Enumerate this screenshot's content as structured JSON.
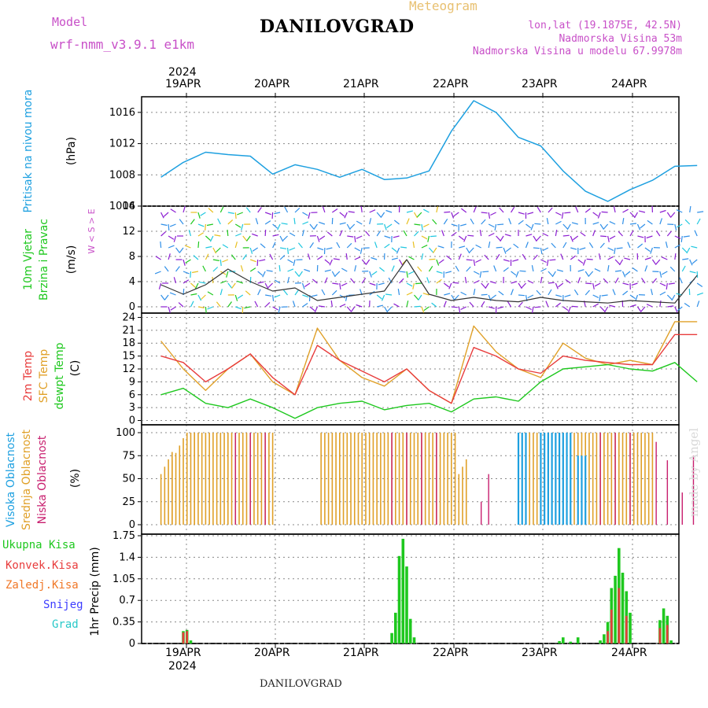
{
  "header": {
    "model_label": "Model",
    "model_name": "wrf-nmm_v3.9.1 e1km",
    "station": "DANILOVGRAD",
    "chart_kind": "Meteogram",
    "coords": "lon,lat (19.1875E, 42.5N)",
    "elevation": "Nadmorska Visina 53m",
    "model_elevation": "Nadmorska Visina u modelu 67.9978m",
    "footer_station": "DANILOVGRAD",
    "credit": "made by Angel"
  },
  "dates": {
    "year": "2024",
    "days": [
      "19APR",
      "20APR",
      "21APR",
      "22APR",
      "23APR",
      "24APR"
    ]
  },
  "colors": {
    "pressure": "#1ea0e0",
    "sfc_temp": "#e0a028",
    "temp_2m": "#e83c3c",
    "dewpoint": "#1ec81e",
    "high_cloud": "#1ea0e0",
    "mid_cloud": "#e0a028",
    "low_cloud": "#c81e6e",
    "total_rain": "#1ec81e",
    "conv_rain": "#e83c3c",
    "frozen_rain": "#f07828",
    "snow": "#3c3cff",
    "graupel": "#28c8c8",
    "wind_purple": "#8c1ed2",
    "wind_label": "#c850c8",
    "frame": "#000000",
    "grid": "#888888"
  },
  "chart_data": [
    {
      "type": "line",
      "panel": "pressure",
      "ylabel_left": "Pritisak na nivou mora",
      "ylabel_unit": "(hPa)",
      "ylim": [
        1004,
        1018
      ],
      "yticks": [
        "1004",
        "1008",
        "1012",
        "1016"
      ],
      "x_hours": [
        0,
        6,
        12,
        18,
        24,
        30,
        36,
        42,
        48,
        54,
        60,
        66,
        72,
        78,
        84,
        90,
        96,
        102,
        108,
        114,
        120,
        126,
        132,
        138,
        144
      ],
      "series": [
        {
          "values": [
            1007.7,
            1009.6,
            1010.9,
            1010.6,
            1010.4,
            1008.1,
            1009.3,
            1008.7,
            1007.7,
            1008.7,
            1007.4,
            1007.6,
            1008.5,
            1013.6,
            1017.5,
            1016.0,
            1012.8,
            1011.7,
            1008.5,
            1005.9,
            1004.6,
            1006.1,
            1007.3,
            1009.1,
            1009.2
          ]
        }
      ]
    },
    {
      "type": "line",
      "panel": "wind",
      "ylabel_left": [
        "10m Vjetar",
        "Brzina i Pravac"
      ],
      "ylabel_unit": "(m/s)",
      "compass": "W < S > E",
      "ylim": [
        -1,
        16
      ],
      "yticks": [
        "0",
        "4",
        "8",
        "12",
        "16"
      ],
      "x_hours": [
        0,
        6,
        12,
        18,
        24,
        30,
        36,
        42,
        48,
        54,
        60,
        66,
        72,
        78,
        84,
        90,
        96,
        102,
        108,
        114,
        120,
        126,
        132,
        138,
        144
      ],
      "series": [
        {
          "values": [
            3.5,
            2.0,
            3.5,
            6.0,
            4.0,
            2.5,
            3.0,
            1.0,
            1.5,
            2.0,
            2.5,
            7.5,
            2.0,
            1.0,
            1.5,
            1.0,
            0.8,
            1.5,
            1.0,
            0.8,
            0.6,
            1.0,
            0.8,
            0.6,
            5.0
          ]
        }
      ]
    },
    {
      "type": "line",
      "panel": "temperature",
      "ylabel_left": [
        "2m Temp",
        "SFC Temp",
        "dewpt Temp"
      ],
      "ylabel_unit": "(C)",
      "ylim": [
        -1,
        25
      ],
      "yticks": [
        "0",
        "3",
        "6",
        "9",
        "12",
        "15",
        "18",
        "21",
        "24"
      ],
      "x_hours": [
        0,
        6,
        12,
        18,
        24,
        30,
        36,
        42,
        48,
        54,
        60,
        66,
        72,
        78,
        84,
        90,
        96,
        102,
        108,
        114,
        120,
        126,
        132,
        138,
        144
      ],
      "series": [
        {
          "values": [
            18.5,
            12.0,
            7.0,
            12.0,
            15.5,
            9.0,
            6.0,
            21.5,
            14.0,
            10.0,
            8.0,
            12.0,
            7.0,
            4.0,
            22.0,
            16.0,
            12.0,
            10.0,
            18.0,
            14.5,
            13.0,
            14.0,
            13.0,
            23.0,
            23.0
          ]
        },
        {
          "values": [
            15.0,
            13.5,
            9.0,
            12.0,
            15.5,
            10.0,
            6.0,
            17.5,
            14.0,
            11.5,
            9.0,
            12.0,
            7.0,
            4.0,
            17.0,
            15.0,
            12.0,
            11.0,
            15.0,
            14.0,
            13.5,
            13.0,
            13.0,
            20.0,
            20.0
          ]
        },
        {
          "values": [
            6.0,
            7.5,
            4.0,
            3.0,
            5.0,
            3.0,
            0.5,
            3.0,
            4.0,
            4.5,
            2.5,
            3.5,
            4.0,
            2.0,
            5.0,
            5.5,
            4.5,
            9.0,
            12.0,
            12.5,
            13.0,
            12.0,
            11.5,
            13.5,
            9.0
          ]
        }
      ]
    },
    {
      "type": "bar",
      "panel": "clouds",
      "ylabel_left": [
        "Visoka Oblacnost",
        "Srednja Oblacnost",
        "Niska Oblacnost"
      ],
      "ylabel_unit": "(%)",
      "ylim": [
        0,
        100
      ],
      "yticks": [
        "0",
        "25",
        "50",
        "75",
        "100"
      ],
      "segments": [
        {
          "from_hour": 0,
          "to_hour": 3,
          "mid": 55
        },
        {
          "from_hour": 3,
          "to_hour": 9,
          "mid": 70
        },
        {
          "from_hour": 9,
          "to_hour": 30,
          "mid": 100
        },
        {
          "from_hour": 43,
          "to_hour": 79,
          "mid": 100
        },
        {
          "from_hour": 80,
          "to_hour": 82,
          "mid": 55
        },
        {
          "from_hour": 96,
          "to_hour": 132,
          "mid": 100
        }
      ],
      "high_segments": [
        {
          "from_hour": 96,
          "to_hour": 98,
          "value": 100
        },
        {
          "from_hour": 102,
          "to_hour": 110,
          "value": 100
        },
        {
          "from_hour": 112,
          "to_hour": 114,
          "value": 75
        }
      ],
      "low_bars": [
        {
          "hour": 20,
          "value": 100
        },
        {
          "hour": 24,
          "value": 100
        },
        {
          "hour": 28,
          "value": 100
        },
        {
          "hour": 62,
          "value": 100
        },
        {
          "hour": 66,
          "value": 100
        },
        {
          "hour": 70,
          "value": 100
        },
        {
          "hour": 74,
          "value": 100
        },
        {
          "hour": 86,
          "value": 25
        },
        {
          "hour": 88,
          "value": 55
        },
        {
          "hour": 118,
          "value": 100
        },
        {
          "hour": 122,
          "value": 100
        },
        {
          "hour": 126,
          "value": 100
        },
        {
          "hour": 133,
          "value": 90
        },
        {
          "hour": 136,
          "value": 70
        },
        {
          "hour": 140,
          "value": 35
        },
        {
          "hour": 143,
          "value": 75
        }
      ]
    },
    {
      "type": "bar",
      "panel": "precipitation",
      "ylabel_left": [
        "Ukupna Kisa",
        "Konvek.Kisa",
        "Zaledj.Kisa",
        "Snijeg",
        "Grad"
      ],
      "ylabel_unit": "1hr Precip (mm)",
      "ylim": [
        0,
        1.75
      ],
      "yticks": [
        "0",
        "0.35",
        "0.7",
        "1.05",
        "1.4",
        "1.75"
      ],
      "total_bars": [
        {
          "hour": 6,
          "value": 0.2
        },
        {
          "hour": 7,
          "value": 0.22
        },
        {
          "hour": 8,
          "value": 0.05
        },
        {
          "hour": 62,
          "value": 0.17
        },
        {
          "hour": 63,
          "value": 0.5
        },
        {
          "hour": 64,
          "value": 1.42
        },
        {
          "hour": 65,
          "value": 1.7
        },
        {
          "hour": 66,
          "value": 1.25
        },
        {
          "hour": 67,
          "value": 0.4
        },
        {
          "hour": 68,
          "value": 0.1
        },
        {
          "hour": 107,
          "value": 0.04
        },
        {
          "hour": 108,
          "value": 0.1
        },
        {
          "hour": 110,
          "value": 0.03
        },
        {
          "hour": 112,
          "value": 0.1
        },
        {
          "hour": 118,
          "value": 0.05
        },
        {
          "hour": 119,
          "value": 0.15
        },
        {
          "hour": 120,
          "value": 0.35
        },
        {
          "hour": 121,
          "value": 0.9
        },
        {
          "hour": 122,
          "value": 1.1
        },
        {
          "hour": 123,
          "value": 1.55
        },
        {
          "hour": 124,
          "value": 1.15
        },
        {
          "hour": 125,
          "value": 0.85
        },
        {
          "hour": 126,
          "value": 0.5
        },
        {
          "hour": 134,
          "value": 0.38
        },
        {
          "hour": 135,
          "value": 0.57
        },
        {
          "hour": 136,
          "value": 0.45
        },
        {
          "hour": 137,
          "value": 0.05
        }
      ],
      "convective_bars": [
        {
          "hour": 6,
          "value": 0.18
        },
        {
          "hour": 7,
          "value": 0.2
        },
        {
          "hour": 120,
          "value": 0.2
        },
        {
          "hour": 121,
          "value": 0.55
        },
        {
          "hour": 123,
          "value": 0.9
        },
        {
          "hour": 125,
          "value": 0.45
        },
        {
          "hour": 134,
          "value": 0.25
        },
        {
          "hour": 136,
          "value": 0.3
        }
      ]
    }
  ]
}
